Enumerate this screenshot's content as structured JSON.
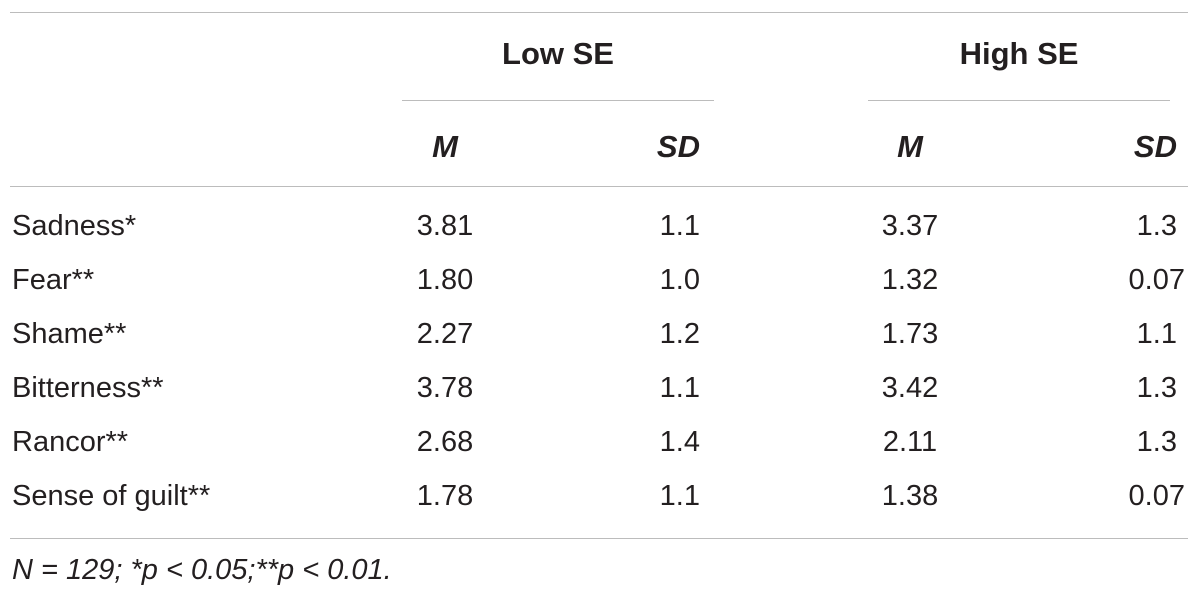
{
  "table": {
    "groups": [
      "Low SE",
      "High SE"
    ],
    "subheaders": [
      "M",
      "SD",
      "M",
      "SD"
    ],
    "rows": [
      {
        "label": "Sadness*",
        "values": [
          "3.81",
          "1.1",
          "3.37",
          "1.3"
        ]
      },
      {
        "label": "Fear**",
        "values": [
          "1.80",
          "1.0",
          "1.32",
          "0.07"
        ]
      },
      {
        "label": "Shame**",
        "values": [
          "2.27",
          "1.2",
          "1.73",
          "1.1"
        ]
      },
      {
        "label": "Bitterness**",
        "values": [
          "3.78",
          "1.1",
          "3.42",
          "1.3"
        ]
      },
      {
        "label": "Rancor**",
        "values": [
          "2.68",
          "1.4",
          "2.11",
          "1.3"
        ]
      },
      {
        "label": "Sense of guilt**",
        "values": [
          "1.78",
          "1.1",
          "1.38",
          "0.07"
        ]
      }
    ],
    "note": "N = 129; *p < 0.05;**p < 0.01."
  }
}
